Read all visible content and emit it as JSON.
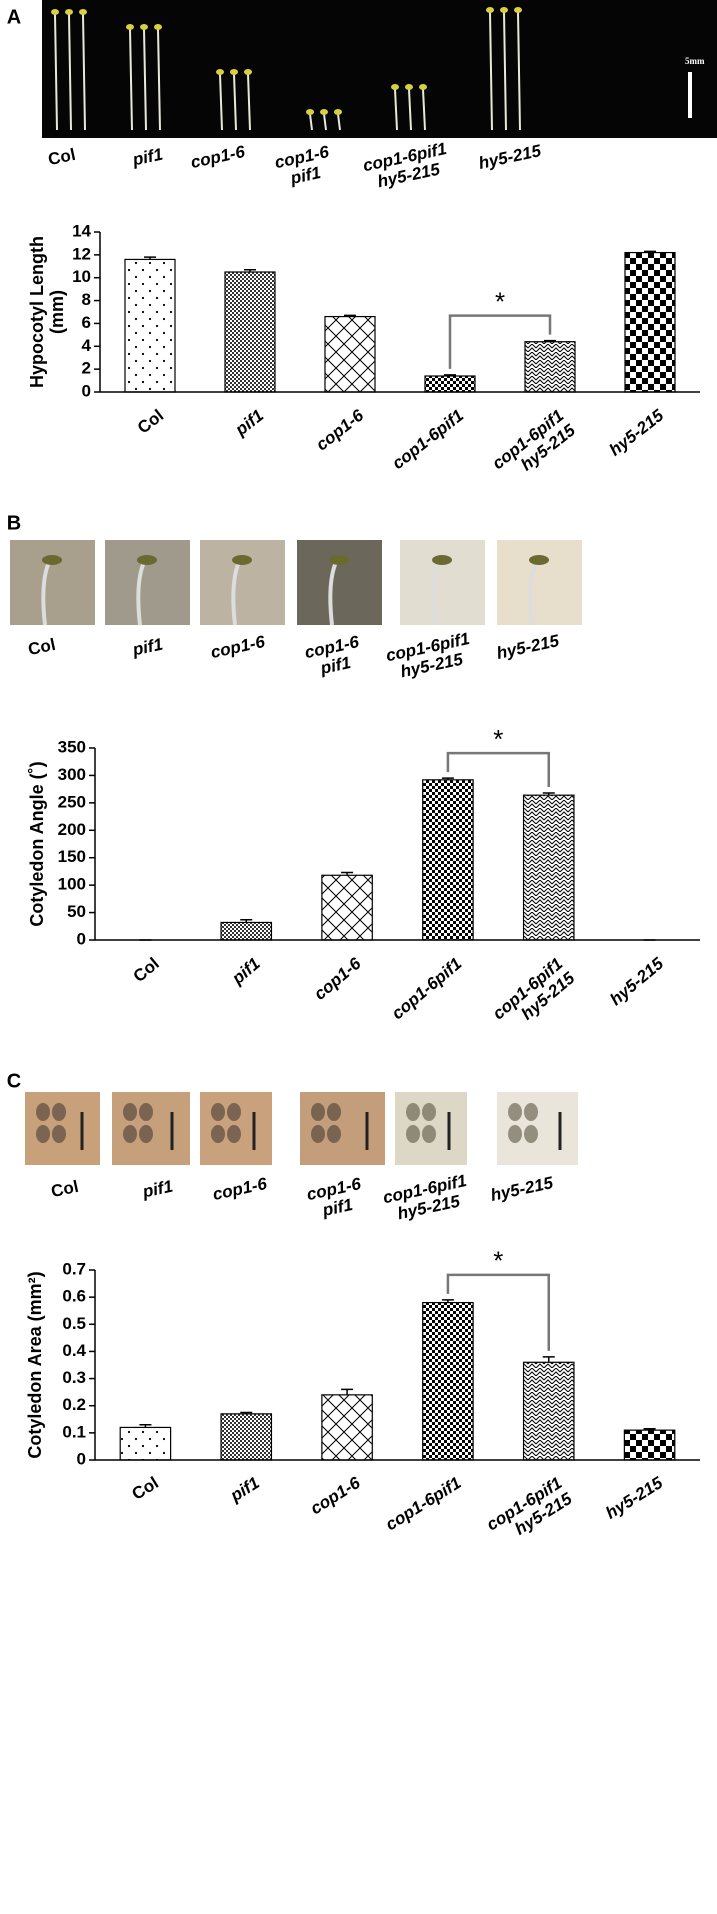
{
  "panels": [
    {
      "label": "A",
      "scale_label": "5mm",
      "photo_labels": [
        "Col",
        "pif1",
        "cop1-6",
        "cop1-6\npif1",
        "cop1-6pif1\nhy5-215",
        "hy5-215"
      ]
    },
    {
      "label": "B",
      "photo_labels": [
        "Col",
        "pif1",
        "cop1-6",
        "cop1-6\npif1",
        "cop1-6pif1\nhy5-215",
        "hy5-215"
      ]
    },
    {
      "label": "C",
      "photo_labels": [
        "Col",
        "pif1",
        "cop1-6",
        "cop1-6\npif1",
        "cop1-6pif1\nhy5-215",
        "hy5-215"
      ]
    }
  ],
  "chart_data": [
    {
      "type": "bar",
      "y_label": "Hypocotyl Length\n(mm)",
      "categories": [
        "Col",
        "pif1",
        "cop1-6",
        "cop1-6pif1",
        "cop1-6pif1\nhy5-215",
        "hy5-215"
      ],
      "values": [
        11.6,
        10.5,
        6.6,
        1.4,
        4.4,
        12.2
      ],
      "errors": [
        0.2,
        0.2,
        0.1,
        0.1,
        0.1,
        0.1
      ],
      "ylim": [
        0,
        14
      ],
      "yticks": [
        0,
        2,
        4,
        6,
        8,
        10,
        12,
        14
      ],
      "annotation": "*",
      "compare": [
        3,
        4
      ]
    },
    {
      "type": "bar",
      "y_label": "Cotyledon Angle (˚)",
      "categories": [
        "Col",
        "pif1",
        "cop1-6",
        "cop1-6pif1",
        "cop1-6pif1\nhy5-215",
        "hy5-215"
      ],
      "values": [
        0,
        32,
        118,
        292,
        264,
        0
      ],
      "errors": [
        0,
        5,
        5,
        3,
        4,
        0
      ],
      "ylim": [
        0,
        350
      ],
      "yticks": [
        0,
        50,
        100,
        150,
        200,
        250,
        300,
        350
      ],
      "annotation": "*",
      "compare": [
        3,
        4
      ]
    },
    {
      "type": "bar",
      "y_label": "Cotyledon Area (mm²)",
      "categories": [
        "Col",
        "pif1",
        "cop1-6",
        "cop1-6pif1",
        "cop1-6pif1\nhy5-215",
        "hy5-215"
      ],
      "values": [
        0.12,
        0.17,
        0.24,
        0.58,
        0.36,
        0.11
      ],
      "errors": [
        0.01,
        0.005,
        0.02,
        0.01,
        0.02,
        0.005
      ],
      "ylim": [
        0,
        0.7
      ],
      "yticks": [
        0,
        0.1,
        0.2,
        0.3,
        0.4,
        0.5,
        0.6,
        0.7
      ],
      "annotation": "*",
      "compare": [
        3,
        4
      ]
    }
  ]
}
